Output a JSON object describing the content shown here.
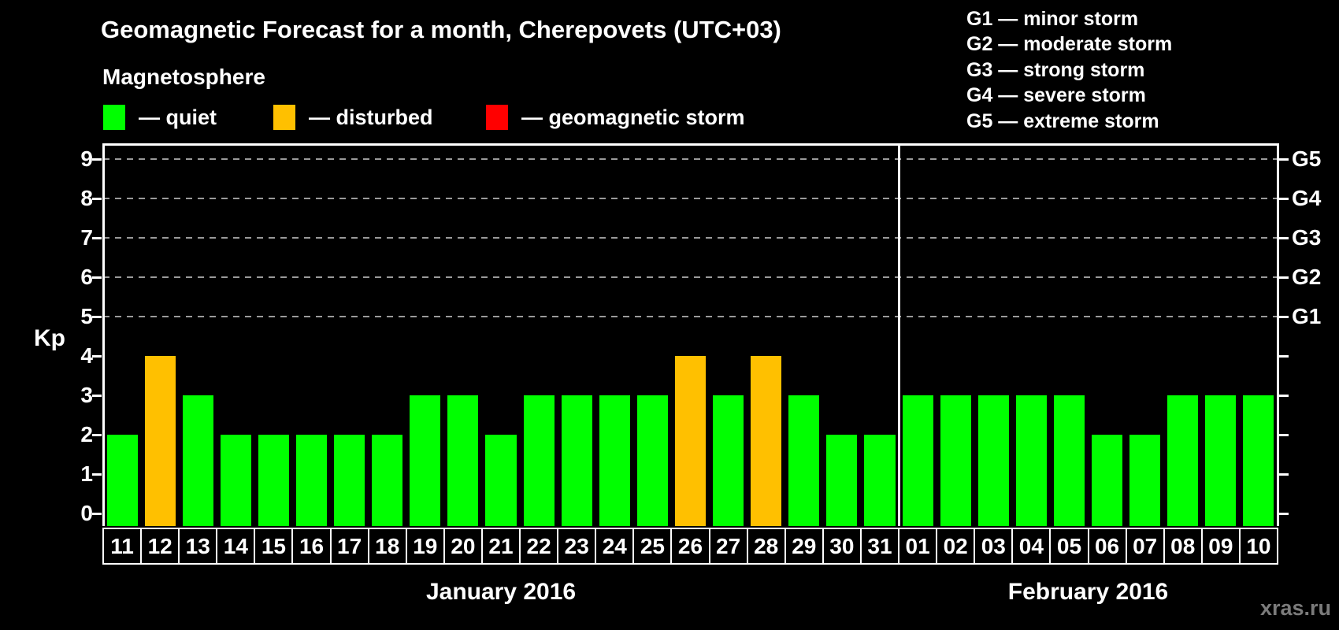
{
  "title": "Geomagnetic Forecast for a month, Cherepovets (UTC+03)",
  "subtitle": "Magnetosphere",
  "legend": {
    "items": [
      {
        "label": "— quiet",
        "color": "#00ff00",
        "x": 131
      },
      {
        "label": "— disturbed",
        "color": "#ffc000",
        "x": 347
      },
      {
        "label": "— geomagnetic storm",
        "color": "#ff0000",
        "x": 617
      }
    ]
  },
  "storm_legend": [
    "G1 — minor storm",
    "G2 — moderate storm",
    "G3 — strong storm",
    "G4 — severe storm",
    "G5 — extreme storm"
  ],
  "watermark": "xras.ru",
  "chart_data": {
    "type": "bar",
    "ylabel": "Kp",
    "ylim": [
      0,
      9
    ],
    "yticks": [
      0,
      1,
      2,
      3,
      4,
      5,
      6,
      7,
      8,
      9
    ],
    "gridline_values": [
      5,
      6,
      7,
      8,
      9
    ],
    "grid": "dashed horizontal at G-storm levels",
    "right_axis_labels": [
      {
        "value": 5,
        "label": "G1"
      },
      {
        "value": 6,
        "label": "G2"
      },
      {
        "value": 7,
        "label": "G3"
      },
      {
        "value": 8,
        "label": "G4"
      },
      {
        "value": 9,
        "label": "G5"
      }
    ],
    "status_colors": {
      "quiet": "#00ff00",
      "disturbed": "#ffc000",
      "storm": "#ff0000"
    },
    "months": [
      {
        "label": "January 2016",
        "days": [
          {
            "day": "11",
            "kp": 2,
            "status": "quiet"
          },
          {
            "day": "12",
            "kp": 4,
            "status": "disturbed"
          },
          {
            "day": "13",
            "kp": 3,
            "status": "quiet"
          },
          {
            "day": "14",
            "kp": 2,
            "status": "quiet"
          },
          {
            "day": "15",
            "kp": 2,
            "status": "quiet"
          },
          {
            "day": "16",
            "kp": 2,
            "status": "quiet"
          },
          {
            "day": "17",
            "kp": 2,
            "status": "quiet"
          },
          {
            "day": "18",
            "kp": 2,
            "status": "quiet"
          },
          {
            "day": "19",
            "kp": 3,
            "status": "quiet"
          },
          {
            "day": "20",
            "kp": 3,
            "status": "quiet"
          },
          {
            "day": "21",
            "kp": 2,
            "status": "quiet"
          },
          {
            "day": "22",
            "kp": 3,
            "status": "quiet"
          },
          {
            "day": "23",
            "kp": 3,
            "status": "quiet"
          },
          {
            "day": "24",
            "kp": 3,
            "status": "quiet"
          },
          {
            "day": "25",
            "kp": 3,
            "status": "quiet"
          },
          {
            "day": "26",
            "kp": 4,
            "status": "disturbed"
          },
          {
            "day": "27",
            "kp": 3,
            "status": "quiet"
          },
          {
            "day": "28",
            "kp": 4,
            "status": "disturbed"
          },
          {
            "day": "29",
            "kp": 3,
            "status": "quiet"
          },
          {
            "day": "30",
            "kp": 2,
            "status": "quiet"
          },
          {
            "day": "31",
            "kp": 2,
            "status": "quiet"
          }
        ]
      },
      {
        "label": "February 2016",
        "days": [
          {
            "day": "01",
            "kp": 3,
            "status": "quiet"
          },
          {
            "day": "02",
            "kp": 3,
            "status": "quiet"
          },
          {
            "day": "03",
            "kp": 3,
            "status": "quiet"
          },
          {
            "day": "04",
            "kp": 3,
            "status": "quiet"
          },
          {
            "day": "05",
            "kp": 3,
            "status": "quiet"
          },
          {
            "day": "06",
            "kp": 2,
            "status": "quiet"
          },
          {
            "day": "07",
            "kp": 2,
            "status": "quiet"
          },
          {
            "day": "08",
            "kp": 3,
            "status": "quiet"
          },
          {
            "day": "09",
            "kp": 3,
            "status": "quiet"
          },
          {
            "day": "10",
            "kp": 3,
            "status": "quiet"
          }
        ]
      }
    ]
  }
}
